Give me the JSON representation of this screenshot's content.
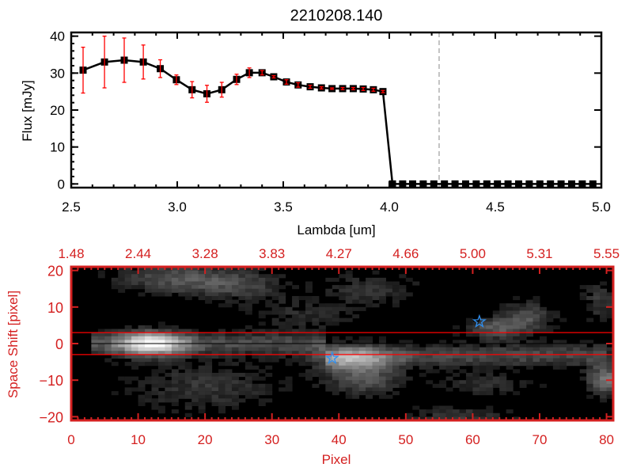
{
  "chart_data": [
    {
      "type": "line",
      "title": "2210208.140",
      "xlabel": "Lambda [um]",
      "ylabel": "Flux [mJy]",
      "xlim": [
        2.5,
        5.0
      ],
      "ylim": [
        -1,
        41
      ],
      "xticks": [
        "2.5",
        "3.0",
        "3.5",
        "4.0",
        "4.5",
        "5.0"
      ],
      "yticks": [
        "0",
        "10",
        "20",
        "30",
        "40"
      ],
      "grid": false,
      "marker_line_color": "#000000",
      "errorbar_color": "#ff0000",
      "vertical_marker": {
        "x": 4.235,
        "style": "dashed",
        "color": "#888888"
      },
      "zero_line": {
        "y": 0,
        "from_x": 4.015,
        "style": "dashed",
        "color": "#ff0000"
      },
      "x": [
        2.556,
        2.657,
        2.75,
        2.84,
        2.92,
        2.996,
        3.07,
        3.14,
        3.21,
        3.28,
        3.34,
        3.4,
        3.455,
        3.515,
        3.57,
        3.627,
        3.68,
        3.73,
        3.78,
        3.83,
        3.877,
        3.925,
        3.97,
        4.015,
        4.063,
        4.11,
        4.16,
        4.21,
        4.26,
        4.31,
        4.36,
        4.41,
        4.46,
        4.51,
        4.56,
        4.61,
        4.66,
        4.71,
        4.76,
        4.81,
        4.86,
        4.91,
        4.96
      ],
      "y": [
        30.8,
        33.0,
        33.5,
        33.0,
        31.2,
        28.2,
        25.5,
        24.4,
        25.5,
        28.3,
        30.1,
        30.1,
        29.0,
        27.6,
        26.8,
        26.3,
        26.0,
        25.8,
        25.8,
        25.8,
        25.7,
        25.5,
        25.0,
        0,
        0,
        0,
        0,
        0,
        0,
        0,
        0,
        0,
        0,
        0,
        0,
        0,
        0,
        0,
        0,
        0,
        0,
        0,
        0
      ],
      "yerr": [
        6.2,
        7.0,
        6.0,
        4.6,
        2.4,
        1.3,
        2.2,
        2.3,
        2.0,
        1.4,
        1.3,
        0.6,
        0.3,
        0.6,
        0.6,
        0.4,
        0.3,
        0.2,
        0.3,
        0.3,
        0.4,
        0.4,
        0.3,
        0,
        0,
        0,
        0,
        0,
        0,
        0,
        0,
        0,
        0,
        0,
        0,
        0,
        0,
        0,
        0,
        0,
        0,
        0,
        0
      ]
    },
    {
      "type": "heatmap",
      "xlabel": "Pixel",
      "ylabel": "Space Shift [pixel]",
      "xlim": [
        0,
        81
      ],
      "ylim": [
        -21,
        21
      ],
      "xticks": [
        "0",
        "10",
        "20",
        "30",
        "40",
        "50",
        "60",
        "70",
        "80"
      ],
      "yticks": [
        "20",
        "10",
        "0",
        "-10",
        "-20"
      ],
      "top_xticks": [
        "1.48",
        "2.44",
        "3.28",
        "3.83",
        "4.27",
        "4.66",
        "5.00",
        "5.31",
        "5.55"
      ],
      "colormap": "gray",
      "axis_color": "#d42020",
      "aperture_lines": [
        3,
        -3
      ],
      "center_line": 0,
      "markers": [
        {
          "symbol": "star",
          "x": 61,
          "y": 6,
          "color": "#2f8fef"
        },
        {
          "symbol": "star",
          "x": 39,
          "y": -4,
          "color": "#2f8fef"
        }
      ]
    }
  ]
}
